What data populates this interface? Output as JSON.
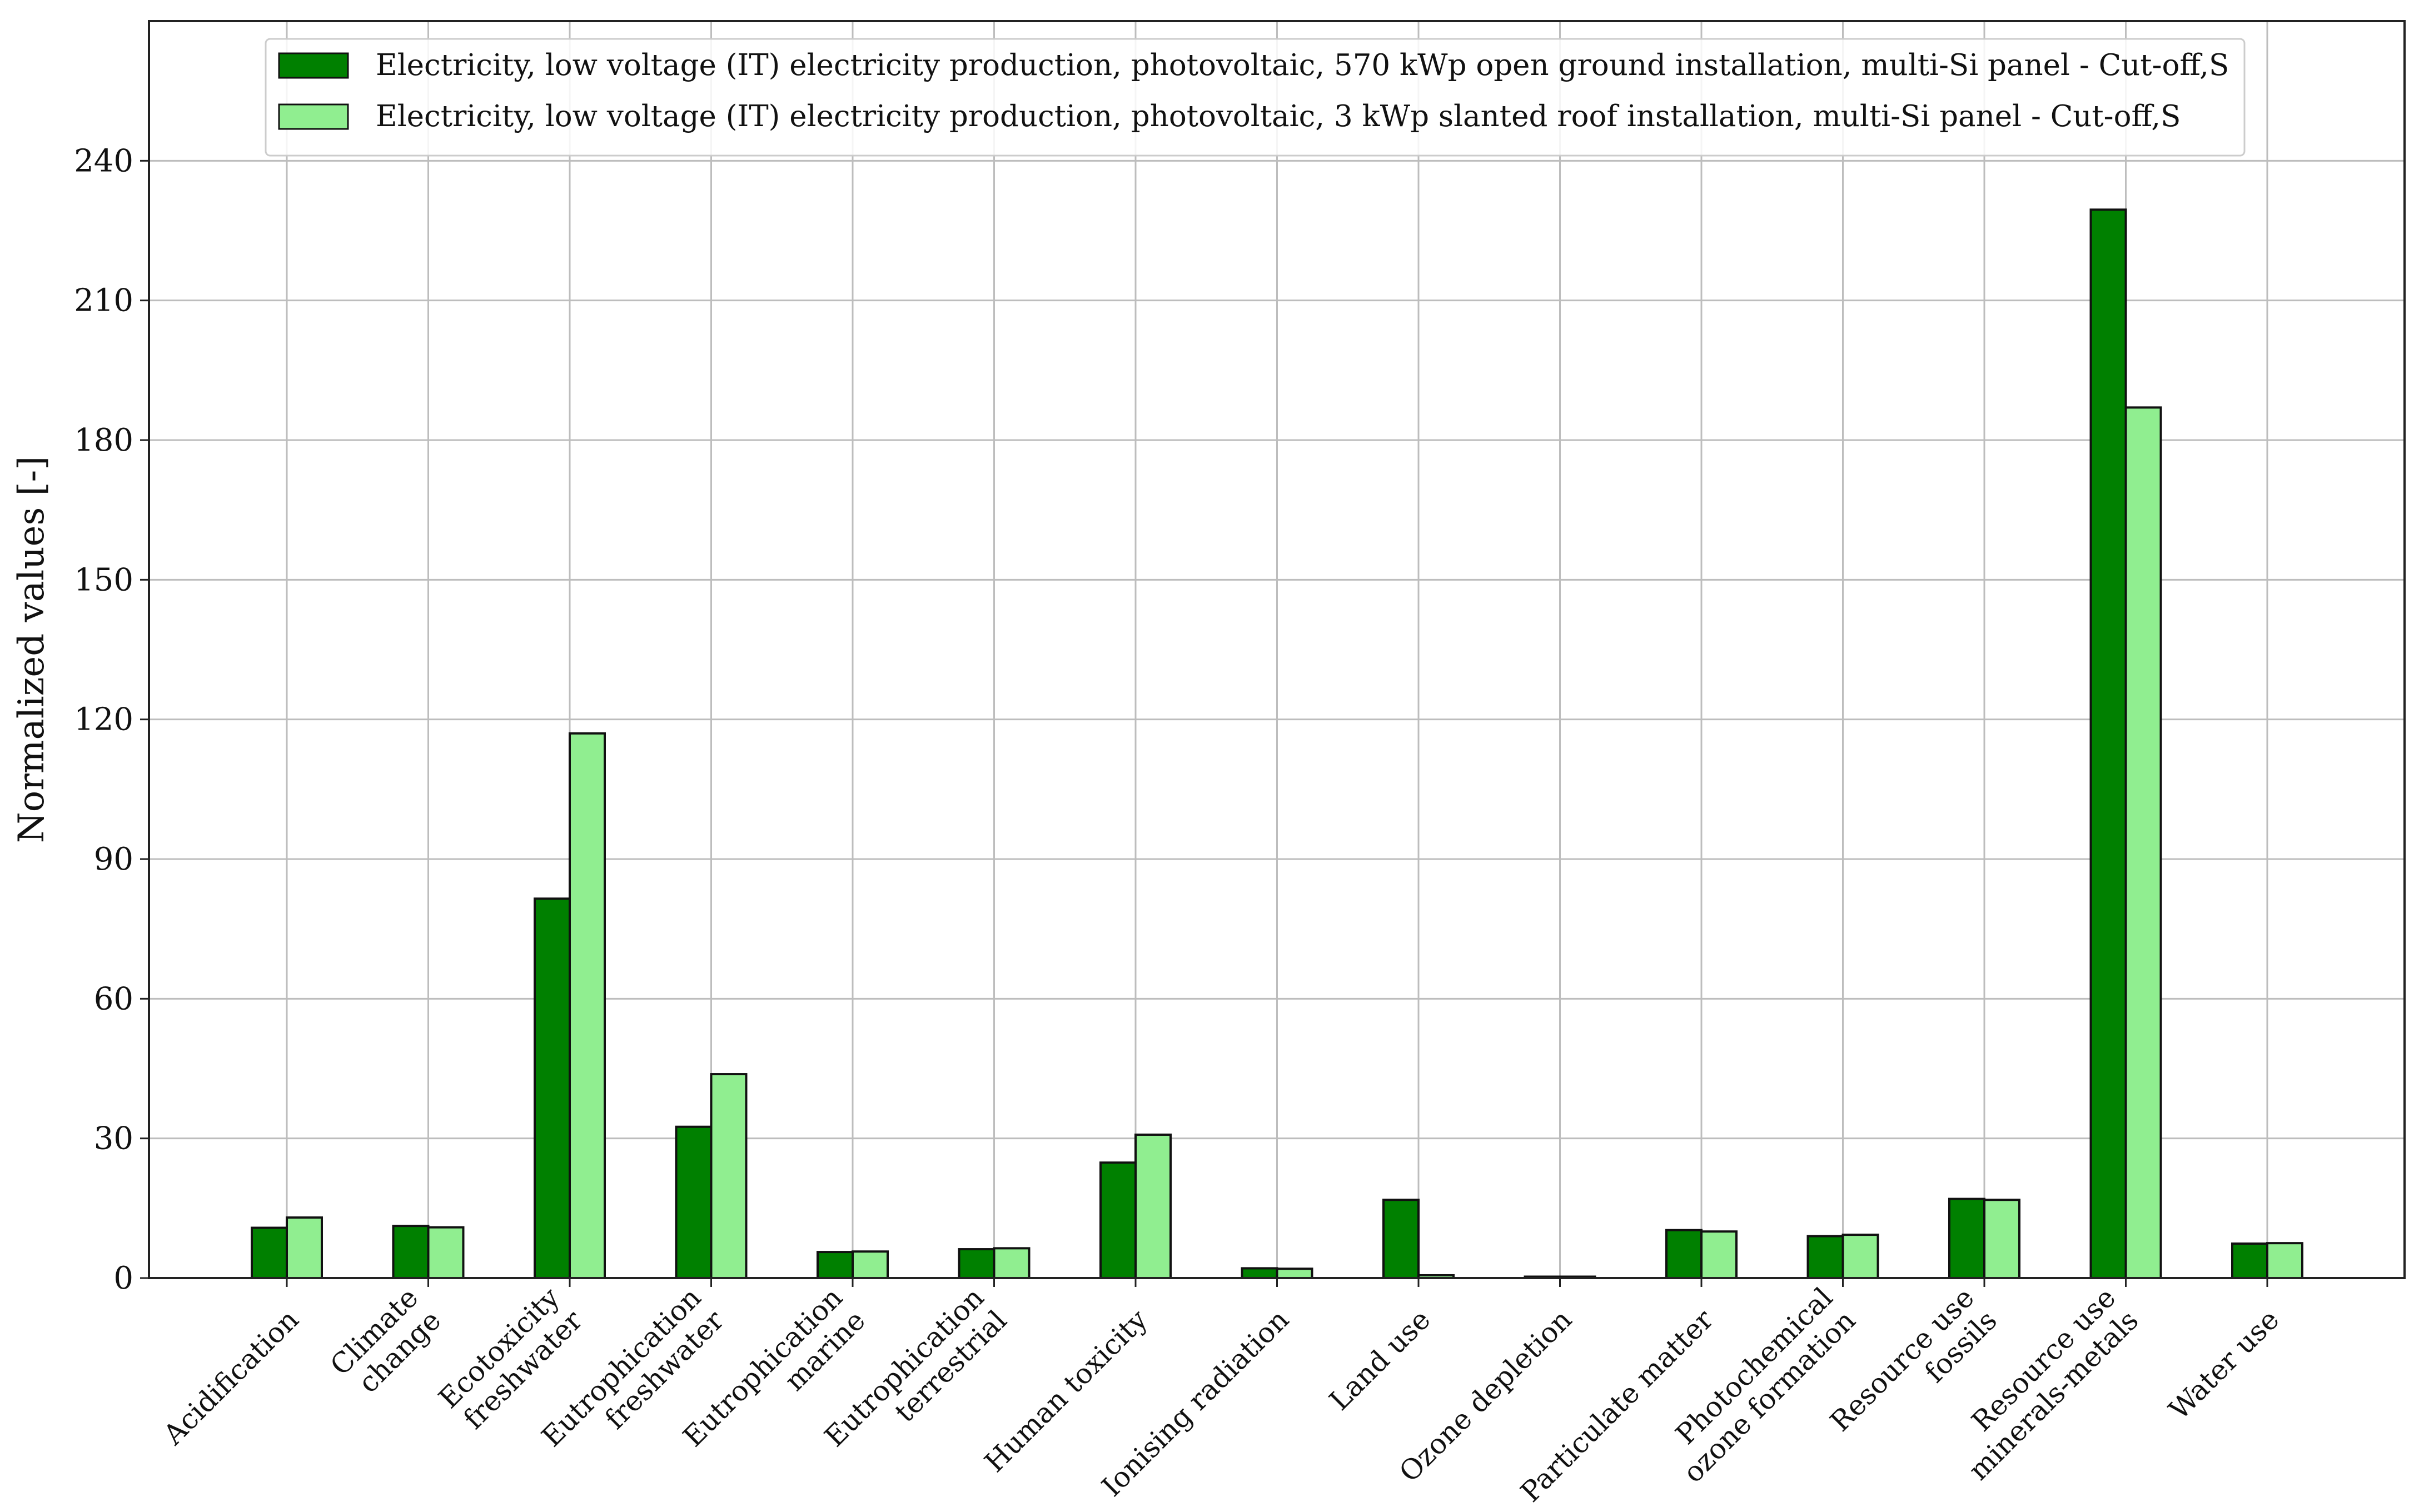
{
  "chart_data": {
    "type": "bar",
    "title": "",
    "xlabel": "",
    "ylabel": "Normalized values [-]",
    "ylim": [
      0,
      270
    ],
    "yticks": [
      0,
      30,
      60,
      90,
      120,
      150,
      180,
      210,
      240
    ],
    "grid": true,
    "legend_position": "top-center",
    "categories": [
      "Acidification",
      "Climate\nchange",
      "Ecotoxicity\nfreshwater",
      "Eutrophication\nfreshwater",
      "Eutrophication\nmarine",
      "Eutrophication\nterrestrial",
      "Human toxicity",
      "Ionising radiation",
      "Land use",
      "Ozone depletion",
      "Particulate matter",
      "Photochemical\nozone formation",
      "Resource use\nfossils",
      "Resource use\nminerals-metals",
      "Water use"
    ],
    "series": [
      {
        "name": "Electricity, low voltage (IT) electricity production, photovoltaic, 570 kWp open ground installation, multi-Si panel - Cut-off,S",
        "color": "#008000",
        "values": [
          10.8,
          11.2,
          81.5,
          32.5,
          5.6,
          6.2,
          24.8,
          2.1,
          16.8,
          0.3,
          10.3,
          9.0,
          17.0,
          229.5,
          7.4
        ]
      },
      {
        "name": "Electricity, low voltage (IT) electricity production, photovoltaic, 3 kWp slanted roof installation, multi-Si panel - Cut-off,S",
        "color": "#90EE90",
        "values": [
          13.0,
          10.9,
          117.0,
          43.8,
          5.7,
          6.4,
          30.8,
          2.0,
          0.6,
          0.3,
          10.0,
          9.3,
          16.8,
          187.0,
          7.5
        ]
      }
    ]
  }
}
